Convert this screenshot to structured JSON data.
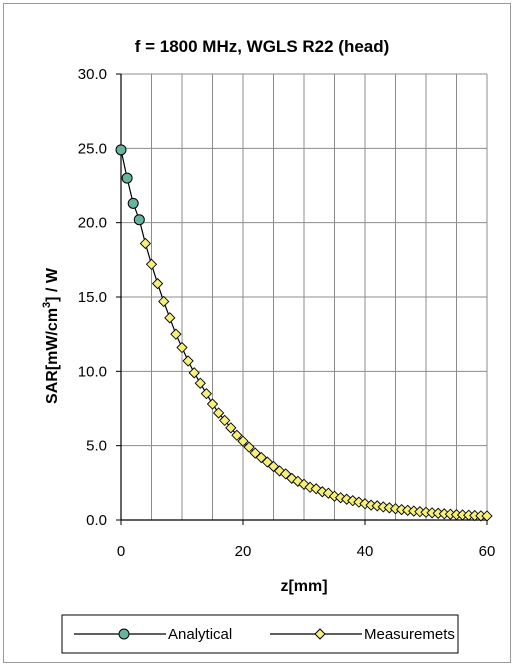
{
  "chart_data": {
    "type": "line",
    "title": "f = 1800 MHz, WGLS R22 (head)",
    "xlabel": "z[mm]",
    "ylabel_main": "SAR[mW/cm",
    "ylabel_sup": "3",
    "ylabel_tail": "] / W",
    "xlim": [
      0,
      60
    ],
    "ylim": [
      0,
      30
    ],
    "x_ticks": [
      "0",
      "20",
      "40",
      "60"
    ],
    "y_ticks": [
      "0.0",
      "5.0",
      "10.0",
      "15.0",
      "20.0",
      "25.0",
      "30.0"
    ],
    "grid": true,
    "legend_position": "bottom",
    "series": [
      {
        "name": "Analytical",
        "color": "#000000",
        "marker_fill": "#66b3a0",
        "x": [
          0,
          1,
          2,
          3
        ],
        "values": [
          24.9,
          23.0,
          21.3,
          20.2
        ]
      },
      {
        "name": "Measuremets",
        "color": "#000000",
        "marker_fill": "#f5f07a",
        "x": [
          4,
          5,
          6,
          7,
          8,
          9,
          10,
          11,
          12,
          13,
          14,
          15,
          16,
          17,
          18,
          19,
          20,
          21,
          22,
          23,
          24,
          25,
          26,
          27,
          28,
          29,
          30,
          31,
          32,
          33,
          34,
          35,
          36,
          37,
          38,
          39,
          40,
          41,
          42,
          43,
          44,
          45,
          46,
          47,
          48,
          49,
          50,
          51,
          52,
          53,
          54,
          55,
          56,
          57,
          58,
          59,
          60
        ],
        "values": [
          18.6,
          17.2,
          15.9,
          14.7,
          13.6,
          12.5,
          11.6,
          10.7,
          9.9,
          9.2,
          8.5,
          7.8,
          7.2,
          6.7,
          6.2,
          5.7,
          5.3,
          4.9,
          4.5,
          4.2,
          3.9,
          3.6,
          3.3,
          3.1,
          2.8,
          2.6,
          2.4,
          2.2,
          2.1,
          1.9,
          1.8,
          1.6,
          1.5,
          1.4,
          1.3,
          1.2,
          1.1,
          1.0,
          0.95,
          0.88,
          0.82,
          0.76,
          0.7,
          0.65,
          0.6,
          0.56,
          0.52,
          0.48,
          0.45,
          0.42,
          0.39,
          0.36,
          0.34,
          0.32,
          0.3,
          0.28,
          0.27
        ]
      }
    ]
  }
}
